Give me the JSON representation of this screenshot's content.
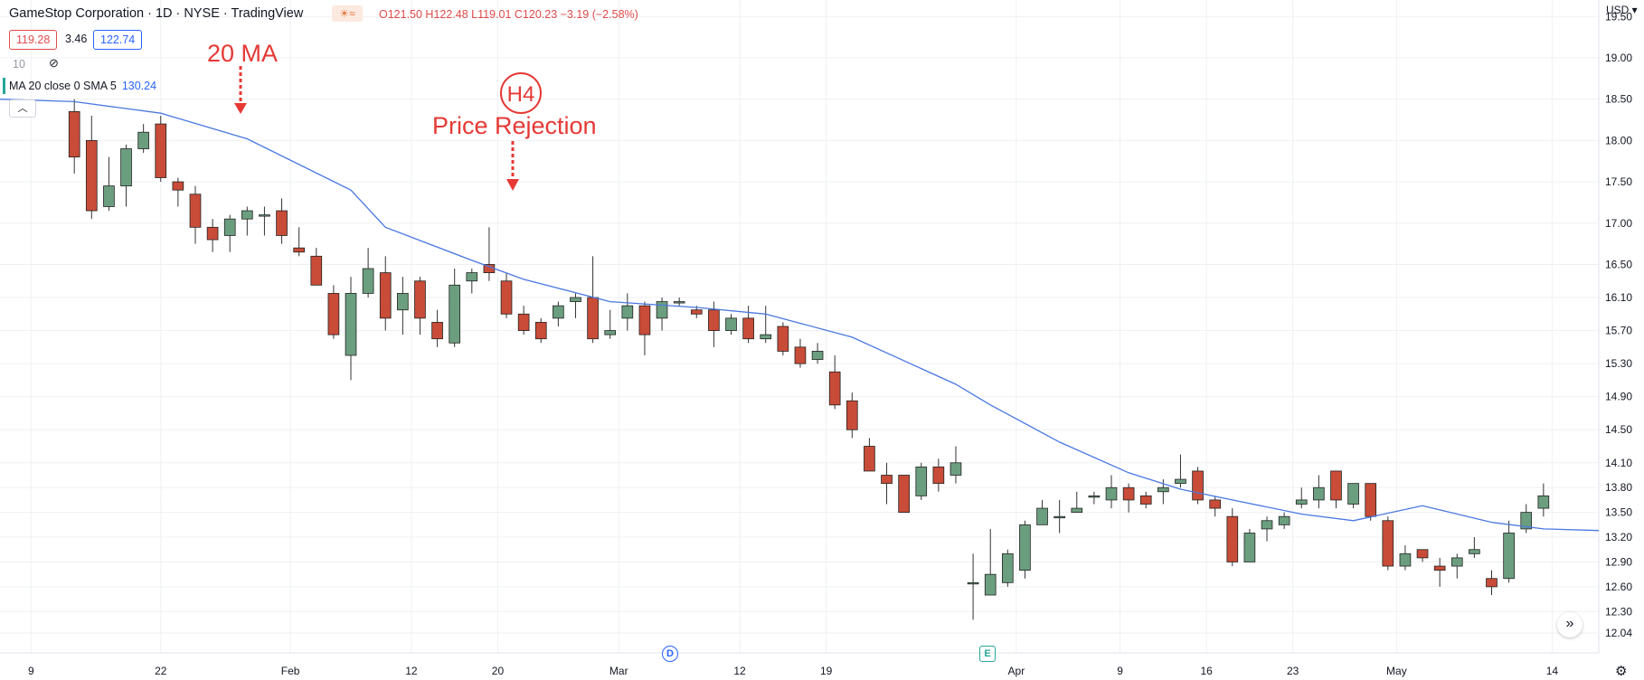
{
  "header": {
    "title": "GameStop Corporation · 1D · NYSE · TradingView",
    "ohlc": "O121.50 H122.48 L119.01 C120.23 −3.19 (−2.58%)",
    "bid": "119.28",
    "spread": "3.46",
    "ask": "122.74",
    "volume_label": "10",
    "ma_label": "MA 20 close 0 SMA 5",
    "ma_value": "130.24",
    "currency": "USD"
  },
  "icons": {
    "weather": "sun-icon",
    "wave": "wave-icon",
    "visibility": "eye-off-icon",
    "collapse": "chevron-up-icon",
    "scroll": "double-chevron-right-icon",
    "settings": "gear-icon"
  },
  "annotations": {
    "ma_text": "20 MA",
    "h4_text": "H4",
    "rejection_text": "Price Rejection"
  },
  "events": {
    "dividend": "D",
    "earnings": "E"
  },
  "colors": {
    "up": "#6b9e7f",
    "down": "#c84c38",
    "ma": "#4a78e0",
    "annotation": "#e53935",
    "grid": "#eef0f3"
  },
  "chart_data": {
    "type": "candlestick",
    "x_labels": [
      {
        "label": "9",
        "index": -2.5
      },
      {
        "label": "22",
        "index": 5
      },
      {
        "label": "Feb",
        "index": 12.5
      },
      {
        "label": "12",
        "index": 19.5
      },
      {
        "label": "20",
        "index": 24.5
      },
      {
        "label": "Mar",
        "index": 31.5
      },
      {
        "label": "12",
        "index": 38.5
      },
      {
        "label": "19",
        "index": 43.5
      },
      {
        "label": "Apr",
        "index": 54.5
      },
      {
        "label": "9",
        "index": 60.5
      },
      {
        "label": "16",
        "index": 65.5
      },
      {
        "label": "23",
        "index": 70.5
      },
      {
        "label": "May",
        "index": 76.5
      },
      {
        "label": "14",
        "index": 85.5
      }
    ],
    "y_ticks": [
      "19.50",
      "19.00",
      "18.50",
      "18.00",
      "17.50",
      "17.00",
      "16.50",
      "16.10",
      "15.70",
      "15.30",
      "14.90",
      "14.50",
      "14.10",
      "13.80",
      "13.50",
      "13.20",
      "12.90",
      "12.60",
      "12.30",
      "12.04"
    ],
    "ylim": [
      11.8,
      19.7
    ],
    "xlim": [
      -4.3,
      88.2
    ],
    "candles": [
      {
        "o": 18.35,
        "h": 18.5,
        "l": 17.6,
        "c": 17.8
      },
      {
        "o": 18.0,
        "h": 18.3,
        "l": 17.05,
        "c": 17.15
      },
      {
        "o": 17.2,
        "h": 17.8,
        "l": 17.15,
        "c": 17.45
      },
      {
        "o": 17.45,
        "h": 17.95,
        "l": 17.2,
        "c": 17.9
      },
      {
        "o": 17.9,
        "h": 18.2,
        "l": 17.85,
        "c": 18.1
      },
      {
        "o": 18.2,
        "h": 18.3,
        "l": 17.5,
        "c": 17.55
      },
      {
        "o": 17.5,
        "h": 17.55,
        "l": 17.2,
        "c": 17.4
      },
      {
        "o": 17.35,
        "h": 17.45,
        "l": 16.75,
        "c": 16.95
      },
      {
        "o": 16.95,
        "h": 17.05,
        "l": 16.65,
        "c": 16.8
      },
      {
        "o": 16.85,
        "h": 17.1,
        "l": 16.65,
        "c": 17.05
      },
      {
        "o": 17.05,
        "h": 17.2,
        "l": 16.85,
        "c": 17.15
      },
      {
        "o": 17.1,
        "h": 17.2,
        "l": 16.85,
        "c": 17.1
      },
      {
        "o": 17.15,
        "h": 17.3,
        "l": 16.75,
        "c": 16.85
      },
      {
        "o": 16.7,
        "h": 16.95,
        "l": 16.6,
        "c": 16.65
      },
      {
        "o": 16.6,
        "h": 16.7,
        "l": 16.25,
        "c": 16.25
      },
      {
        "o": 16.15,
        "h": 16.25,
        "l": 15.6,
        "c": 15.65
      },
      {
        "o": 15.4,
        "h": 16.35,
        "l": 15.1,
        "c": 16.15
      },
      {
        "o": 16.15,
        "h": 16.7,
        "l": 16.1,
        "c": 16.45
      },
      {
        "o": 16.4,
        "h": 16.6,
        "l": 15.7,
        "c": 15.85
      },
      {
        "o": 15.95,
        "h": 16.35,
        "l": 15.65,
        "c": 16.15
      },
      {
        "o": 16.3,
        "h": 16.35,
        "l": 15.65,
        "c": 15.85
      },
      {
        "o": 15.8,
        "h": 15.95,
        "l": 15.5,
        "c": 15.6
      },
      {
        "o": 15.55,
        "h": 16.45,
        "l": 15.5,
        "c": 16.25
      },
      {
        "o": 16.3,
        "h": 16.45,
        "l": 16.15,
        "c": 16.4
      },
      {
        "o": 16.5,
        "h": 16.95,
        "l": 16.3,
        "c": 16.4
      },
      {
        "o": 16.3,
        "h": 16.4,
        "l": 15.85,
        "c": 15.9
      },
      {
        "o": 15.9,
        "h": 16.0,
        "l": 15.65,
        "c": 15.7
      },
      {
        "o": 15.8,
        "h": 15.85,
        "l": 15.55,
        "c": 15.6
      },
      {
        "o": 15.85,
        "h": 16.05,
        "l": 15.75,
        "c": 16.0
      },
      {
        "o": 16.05,
        "h": 16.15,
        "l": 15.85,
        "c": 16.1
      },
      {
        "o": 16.1,
        "h": 16.6,
        "l": 15.55,
        "c": 15.6
      },
      {
        "o": 15.65,
        "h": 15.95,
        "l": 15.6,
        "c": 15.7
      },
      {
        "o": 15.85,
        "h": 16.15,
        "l": 15.7,
        "c": 16.0
      },
      {
        "o": 16.0,
        "h": 16.05,
        "l": 15.4,
        "c": 15.65
      },
      {
        "o": 15.85,
        "h": 16.1,
        "l": 15.7,
        "c": 16.05
      },
      {
        "o": 16.05,
        "h": 16.1,
        "l": 16.0,
        "c": 16.05
      },
      {
        "o": 15.95,
        "h": 16.0,
        "l": 15.85,
        "c": 15.9
      },
      {
        "o": 15.95,
        "h": 16.05,
        "l": 15.5,
        "c": 15.7
      },
      {
        "o": 15.7,
        "h": 15.9,
        "l": 15.65,
        "c": 15.85
      },
      {
        "o": 15.85,
        "h": 16.0,
        "l": 15.55,
        "c": 15.6
      },
      {
        "o": 15.6,
        "h": 16.0,
        "l": 15.55,
        "c": 15.65
      },
      {
        "o": 15.75,
        "h": 15.8,
        "l": 15.4,
        "c": 15.45
      },
      {
        "o": 15.5,
        "h": 15.6,
        "l": 15.25,
        "c": 15.3
      },
      {
        "o": 15.35,
        "h": 15.55,
        "l": 15.3,
        "c": 15.45
      },
      {
        "o": 15.2,
        "h": 15.4,
        "l": 14.75,
        "c": 14.8
      },
      {
        "o": 14.85,
        "h": 14.95,
        "l": 14.4,
        "c": 14.5
      },
      {
        "o": 14.3,
        "h": 14.4,
        "l": 14.0,
        "c": 14.0
      },
      {
        "o": 13.95,
        "h": 14.1,
        "l": 13.6,
        "c": 13.85
      },
      {
        "o": 13.95,
        "h": 13.95,
        "l": 13.5,
        "c": 13.5
      },
      {
        "o": 13.7,
        "h": 14.1,
        "l": 13.65,
        "c": 14.05
      },
      {
        "o": 14.05,
        "h": 14.15,
        "l": 13.75,
        "c": 13.85
      },
      {
        "o": 13.95,
        "h": 14.3,
        "l": 13.85,
        "c": 14.1
      },
      {
        "o": 12.65,
        "h": 13.0,
        "l": 12.2,
        "c": 12.65
      },
      {
        "o": 12.5,
        "h": 13.3,
        "l": 12.5,
        "c": 12.75
      },
      {
        "o": 12.65,
        "h": 13.05,
        "l": 12.6,
        "c": 13.0
      },
      {
        "o": 12.8,
        "h": 13.4,
        "l": 12.7,
        "c": 13.35
      },
      {
        "o": 13.35,
        "h": 13.65,
        "l": 13.35,
        "c": 13.55
      },
      {
        "o": 13.45,
        "h": 13.65,
        "l": 13.25,
        "c": 13.45
      },
      {
        "o": 13.5,
        "h": 13.75,
        "l": 13.5,
        "c": 13.55
      },
      {
        "o": 13.7,
        "h": 13.75,
        "l": 13.6,
        "c": 13.7
      },
      {
        "o": 13.65,
        "h": 13.95,
        "l": 13.55,
        "c": 13.8
      },
      {
        "o": 13.8,
        "h": 13.85,
        "l": 13.5,
        "c": 13.65
      },
      {
        "o": 13.7,
        "h": 13.75,
        "l": 13.55,
        "c": 13.6
      },
      {
        "o": 13.75,
        "h": 13.9,
        "l": 13.6,
        "c": 13.8
      },
      {
        "o": 13.85,
        "h": 14.2,
        "l": 13.8,
        "c": 13.9
      },
      {
        "o": 14.0,
        "h": 14.05,
        "l": 13.6,
        "c": 13.65
      },
      {
        "o": 13.65,
        "h": 13.7,
        "l": 13.45,
        "c": 13.55
      },
      {
        "o": 13.45,
        "h": 13.55,
        "l": 12.85,
        "c": 12.9
      },
      {
        "o": 12.9,
        "h": 13.3,
        "l": 12.9,
        "c": 13.25
      },
      {
        "o": 13.3,
        "h": 13.45,
        "l": 13.15,
        "c": 13.4
      },
      {
        "o": 13.35,
        "h": 13.5,
        "l": 13.3,
        "c": 13.45
      },
      {
        "o": 13.6,
        "h": 13.8,
        "l": 13.55,
        "c": 13.65
      },
      {
        "o": 13.65,
        "h": 13.95,
        "l": 13.55,
        "c": 13.8
      },
      {
        "o": 14.0,
        "h": 14.0,
        "l": 13.55,
        "c": 13.65
      },
      {
        "o": 13.6,
        "h": 13.85,
        "l": 13.55,
        "c": 13.85
      },
      {
        "o": 13.85,
        "h": 13.85,
        "l": 13.4,
        "c": 13.45
      },
      {
        "o": 13.4,
        "h": 13.45,
        "l": 12.8,
        "c": 12.85
      },
      {
        "o": 12.85,
        "h": 13.1,
        "l": 12.8,
        "c": 13.0
      },
      {
        "o": 13.05,
        "h": 13.05,
        "l": 12.9,
        "c": 12.95
      },
      {
        "o": 12.85,
        "h": 12.95,
        "l": 12.6,
        "c": 12.8
      },
      {
        "o": 12.85,
        "h": 13.0,
        "l": 12.7,
        "c": 12.95
      },
      {
        "o": 13.0,
        "h": 13.2,
        "l": 12.95,
        "c": 13.05
      },
      {
        "o": 12.7,
        "h": 12.8,
        "l": 12.5,
        "c": 12.6
      },
      {
        "o": 12.7,
        "h": 13.4,
        "l": 12.65,
        "c": 13.25
      },
      {
        "o": 13.3,
        "h": 13.6,
        "l": 13.25,
        "c": 13.5
      },
      {
        "o": 13.55,
        "h": 13.85,
        "l": 13.45,
        "c": 13.7
      }
    ],
    "ma": [
      {
        "x": -4.3,
        "y": 18.5
      },
      {
        "x": 0,
        "y": 18.47
      },
      {
        "x": 5,
        "y": 18.33
      },
      {
        "x": 10,
        "y": 18.02
      },
      {
        "x": 16,
        "y": 17.4
      },
      {
        "x": 18,
        "y": 16.95
      },
      {
        "x": 23,
        "y": 16.55
      },
      {
        "x": 26,
        "y": 16.32
      },
      {
        "x": 31,
        "y": 16.05
      },
      {
        "x": 36,
        "y": 15.98
      },
      {
        "x": 40,
        "y": 15.9
      },
      {
        "x": 45,
        "y": 15.62
      },
      {
        "x": 51,
        "y": 15.05
      },
      {
        "x": 53,
        "y": 14.8
      },
      {
        "x": 57,
        "y": 14.35
      },
      {
        "x": 61,
        "y": 13.98
      },
      {
        "x": 64,
        "y": 13.78
      },
      {
        "x": 67,
        "y": 13.65
      },
      {
        "x": 71,
        "y": 13.48
      },
      {
        "x": 74,
        "y": 13.4
      },
      {
        "x": 78,
        "y": 13.58
      },
      {
        "x": 82,
        "y": 13.38
      },
      {
        "x": 85,
        "y": 13.3
      },
      {
        "x": 88.2,
        "y": 13.28
      }
    ]
  }
}
